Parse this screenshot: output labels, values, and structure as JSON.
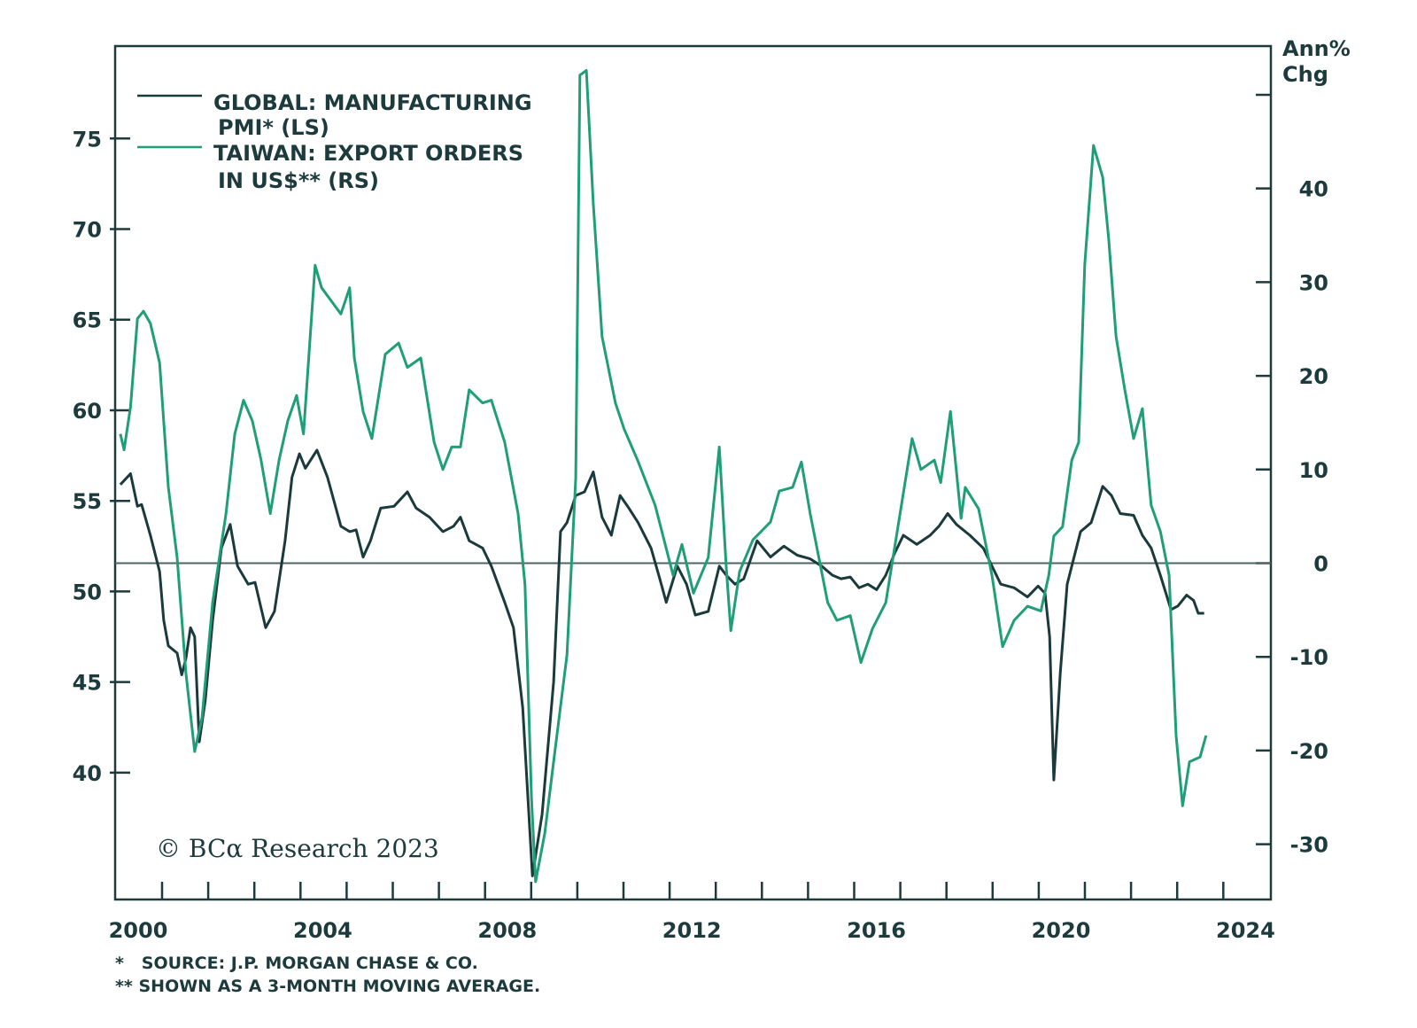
{
  "chart_data": {
    "type": "line",
    "title": "",
    "legend_position": "top-left",
    "grid": false,
    "colors": {
      "pmi": "#1b3a3c",
      "export": "#1f9e78",
      "axis": "#1d3a3c"
    },
    "x_axis": {
      "ticks": [
        2000,
        2004,
        2008,
        2012,
        2016,
        2020,
        2024
      ],
      "range": [
        1999.4,
        2024.5
      ]
    },
    "y_left": {
      "ticks": [
        40,
        45,
        50,
        55,
        60,
        65,
        70,
        75
      ],
      "range": [
        33,
        80.1
      ]
    },
    "y_right": {
      "label_line1": "Ann%",
      "label_line2": "Chg",
      "ticks": [
        -30,
        -20,
        -10,
        0,
        10,
        20,
        30,
        40
      ],
      "range": [
        -35.9,
        55.2
      ],
      "reference_line": 0
    },
    "legend": [
      {
        "line1": "GLOBAL: MANUFACTURING",
        "line2": "PMI* (LS)"
      },
      {
        "line1": "TAIWAN: EXPORT ORDERS",
        "line2": "IN US$** (RS)"
      }
    ],
    "series": [
      {
        "name": "GLOBAL: MANUFACTURING PMI* (LS)",
        "axis": "left",
        "points": [
          [
            1999.48,
            55.9
          ],
          [
            1999.7,
            56.5
          ],
          [
            1999.85,
            54.7
          ],
          [
            1999.94,
            54.8
          ],
          [
            2000.13,
            53.1
          ],
          [
            2000.33,
            51.1
          ],
          [
            2000.42,
            48.4
          ],
          [
            2000.52,
            47.0
          ],
          [
            2000.71,
            46.6
          ],
          [
            2000.81,
            45.4
          ],
          [
            2000.9,
            46.3
          ],
          [
            2001.0,
            48.0
          ],
          [
            2001.09,
            47.5
          ],
          [
            2001.19,
            41.7
          ],
          [
            2001.32,
            44.0
          ],
          [
            2001.48,
            48.4
          ],
          [
            2001.67,
            52.4
          ],
          [
            2001.86,
            53.7
          ],
          [
            2002.02,
            51.4
          ],
          [
            2002.25,
            50.4
          ],
          [
            2002.4,
            50.5
          ],
          [
            2002.63,
            48.0
          ],
          [
            2002.82,
            48.9
          ],
          [
            2003.05,
            52.8
          ],
          [
            2003.2,
            56.3
          ],
          [
            2003.36,
            57.6
          ],
          [
            2003.49,
            56.8
          ],
          [
            2003.74,
            57.8
          ],
          [
            2003.97,
            56.3
          ],
          [
            2004.26,
            53.6
          ],
          [
            2004.45,
            53.3
          ],
          [
            2004.59,
            53.4
          ],
          [
            2004.74,
            51.9
          ],
          [
            2004.9,
            52.8
          ],
          [
            2005.12,
            54.6
          ],
          [
            2005.41,
            54.7
          ],
          [
            2005.7,
            55.5
          ],
          [
            2005.89,
            54.6
          ],
          [
            2006.18,
            54.1
          ],
          [
            2006.47,
            53.3
          ],
          [
            2006.7,
            53.6
          ],
          [
            2006.85,
            54.1
          ],
          [
            2007.04,
            52.8
          ],
          [
            2007.33,
            52.4
          ],
          [
            2007.52,
            51.4
          ],
          [
            2007.81,
            49.4
          ],
          [
            2008.0,
            48.0
          ],
          [
            2008.2,
            43.6
          ],
          [
            2008.41,
            34.3
          ],
          [
            2008.62,
            37.7
          ],
          [
            2008.87,
            45.0
          ],
          [
            2009.02,
            53.3
          ],
          [
            2009.16,
            53.8
          ],
          [
            2009.35,
            55.3
          ],
          [
            2009.54,
            55.5
          ],
          [
            2009.73,
            56.6
          ],
          [
            2009.92,
            54.1
          ],
          [
            2010.12,
            53.1
          ],
          [
            2010.31,
            55.3
          ],
          [
            2010.5,
            54.6
          ],
          [
            2010.7,
            53.8
          ],
          [
            2010.98,
            52.4
          ],
          [
            2011.17,
            50.7
          ],
          [
            2011.31,
            49.4
          ],
          [
            2011.55,
            51.4
          ],
          [
            2011.75,
            50.4
          ],
          [
            2011.94,
            48.7
          ],
          [
            2012.22,
            48.9
          ],
          [
            2012.46,
            51.4
          ],
          [
            2012.61,
            50.9
          ],
          [
            2012.8,
            50.4
          ],
          [
            2012.99,
            50.7
          ],
          [
            2013.28,
            52.8
          ],
          [
            2013.57,
            51.9
          ],
          [
            2013.86,
            52.5
          ],
          [
            2014.15,
            52.0
          ],
          [
            2014.43,
            51.8
          ],
          [
            2014.68,
            51.4
          ],
          [
            2014.91,
            50.9
          ],
          [
            2015.1,
            50.7
          ],
          [
            2015.3,
            50.8
          ],
          [
            2015.49,
            50.2
          ],
          [
            2015.68,
            50.4
          ],
          [
            2015.87,
            50.1
          ],
          [
            2016.07,
            50.9
          ],
          [
            2016.26,
            52.1
          ],
          [
            2016.45,
            53.1
          ],
          [
            2016.74,
            52.6
          ],
          [
            2017.03,
            53.1
          ],
          [
            2017.22,
            53.6
          ],
          [
            2017.41,
            54.3
          ],
          [
            2017.6,
            53.7
          ],
          [
            2017.89,
            53.1
          ],
          [
            2018.18,
            52.4
          ],
          [
            2018.37,
            51.4
          ],
          [
            2018.56,
            50.4
          ],
          [
            2018.85,
            50.2
          ],
          [
            2019.14,
            49.7
          ],
          [
            2019.37,
            50.3
          ],
          [
            2019.52,
            49.9
          ],
          [
            2019.62,
            47.5
          ],
          [
            2019.71,
            39.6
          ],
          [
            2019.85,
            45.5
          ],
          [
            2020.0,
            50.4
          ],
          [
            2020.29,
            53.3
          ],
          [
            2020.52,
            53.8
          ],
          [
            2020.77,
            55.8
          ],
          [
            2020.96,
            55.3
          ],
          [
            2021.15,
            54.3
          ],
          [
            2021.44,
            54.2
          ],
          [
            2021.63,
            53.1
          ],
          [
            2021.82,
            52.4
          ],
          [
            2022.02,
            50.9
          ],
          [
            2022.25,
            49.0
          ],
          [
            2022.4,
            49.2
          ],
          [
            2022.59,
            49.8
          ],
          [
            2022.74,
            49.5
          ],
          [
            2022.84,
            48.8
          ],
          [
            2022.97,
            48.8
          ]
        ]
      },
      {
        "name": "TAIWAN: EXPORT ORDERS IN US$** (RS)",
        "axis": "right",
        "points": [
          [
            1999.48,
            13.8
          ],
          [
            1999.56,
            12.1
          ],
          [
            1999.7,
            16.7
          ],
          [
            1999.85,
            26.1
          ],
          [
            1999.98,
            26.9
          ],
          [
            2000.13,
            25.6
          ],
          [
            2000.33,
            21.4
          ],
          [
            2000.52,
            8.1
          ],
          [
            2000.71,
            0.6
          ],
          [
            2000.9,
            -11.7
          ],
          [
            2001.09,
            -20.1
          ],
          [
            2001.25,
            -16.5
          ],
          [
            2001.48,
            -4.2
          ],
          [
            2001.77,
            5.3
          ],
          [
            2001.96,
            13.8
          ],
          [
            2002.15,
            17.4
          ],
          [
            2002.34,
            15.2
          ],
          [
            2002.53,
            11.0
          ],
          [
            2002.73,
            5.3
          ],
          [
            2002.92,
            11.0
          ],
          [
            2003.11,
            15.2
          ],
          [
            2003.3,
            17.9
          ],
          [
            2003.45,
            13.8
          ],
          [
            2003.7,
            31.8
          ],
          [
            2003.84,
            29.4
          ],
          [
            2004.26,
            26.6
          ],
          [
            2004.45,
            29.4
          ],
          [
            2004.55,
            21.9
          ],
          [
            2004.74,
            16.2
          ],
          [
            2004.93,
            13.3
          ],
          [
            2005.22,
            22.3
          ],
          [
            2005.51,
            23.5
          ],
          [
            2005.7,
            20.9
          ],
          [
            2005.99,
            21.9
          ],
          [
            2006.28,
            12.9
          ],
          [
            2006.47,
            10.0
          ],
          [
            2006.66,
            12.4
          ],
          [
            2006.85,
            12.4
          ],
          [
            2007.04,
            18.5
          ],
          [
            2007.33,
            17.1
          ],
          [
            2007.52,
            17.4
          ],
          [
            2007.81,
            12.9
          ],
          [
            2008.1,
            5.3
          ],
          [
            2008.25,
            -2.3
          ],
          [
            2008.39,
            -25.0
          ],
          [
            2008.48,
            -34.0
          ],
          [
            2008.68,
            -28.8
          ],
          [
            2008.87,
            -21.2
          ],
          [
            2009.16,
            -9.8
          ],
          [
            2009.35,
            9.1
          ],
          [
            2009.44,
            52.1
          ],
          [
            2009.58,
            52.6
          ],
          [
            2009.73,
            38.4
          ],
          [
            2009.92,
            24.2
          ],
          [
            2010.21,
            17.1
          ],
          [
            2010.4,
            14.3
          ],
          [
            2010.69,
            11.0
          ],
          [
            2011.07,
            6.2
          ],
          [
            2011.46,
            -1.3
          ],
          [
            2011.65,
            2.0
          ],
          [
            2011.9,
            -3.2
          ],
          [
            2012.22,
            0.6
          ],
          [
            2012.46,
            12.4
          ],
          [
            2012.61,
            -0.4
          ],
          [
            2012.71,
            -7.2
          ],
          [
            2012.9,
            -0.9
          ],
          [
            2013.19,
            2.5
          ],
          [
            2013.57,
            4.4
          ],
          [
            2013.76,
            7.7
          ],
          [
            2014.05,
            8.1
          ],
          [
            2014.24,
            10.8
          ],
          [
            2014.43,
            5.3
          ],
          [
            2014.81,
            -4.2
          ],
          [
            2015.01,
            -6.1
          ],
          [
            2015.3,
            -5.6
          ],
          [
            2015.53,
            -10.6
          ],
          [
            2015.78,
            -7.0
          ],
          [
            2016.07,
            -4.2
          ],
          [
            2016.35,
            4.4
          ],
          [
            2016.64,
            13.3
          ],
          [
            2016.83,
            10.0
          ],
          [
            2017.12,
            11.0
          ],
          [
            2017.26,
            8.6
          ],
          [
            2017.47,
            16.2
          ],
          [
            2017.7,
            4.8
          ],
          [
            2017.79,
            8.1
          ],
          [
            2018.08,
            5.8
          ],
          [
            2018.37,
            -1.3
          ],
          [
            2018.6,
            -8.9
          ],
          [
            2018.85,
            -6.1
          ],
          [
            2019.14,
            -4.6
          ],
          [
            2019.43,
            -5.1
          ],
          [
            2019.6,
            -1.3
          ],
          [
            2019.71,
            2.9
          ],
          [
            2019.9,
            3.9
          ],
          [
            2020.1,
            11.0
          ],
          [
            2020.25,
            12.9
          ],
          [
            2020.38,
            31.8
          ],
          [
            2020.57,
            44.6
          ],
          [
            2020.77,
            41.2
          ],
          [
            2020.9,
            34.6
          ],
          [
            2021.06,
            24.2
          ],
          [
            2021.25,
            18.5
          ],
          [
            2021.44,
            13.3
          ],
          [
            2021.63,
            16.5
          ],
          [
            2021.82,
            6.2
          ],
          [
            2022.02,
            3.4
          ],
          [
            2022.21,
            -1.3
          ],
          [
            2022.36,
            -18.4
          ],
          [
            2022.5,
            -25.9
          ],
          [
            2022.65,
            -21.2
          ],
          [
            2022.88,
            -20.7
          ],
          [
            2023.01,
            -18.4
          ]
        ]
      }
    ],
    "watermark": "© BCα Research 2023",
    "footnotes": [
      "*   SOURCE: J.P. MORGAN CHASE & CO.",
      "** SHOWN AS A 3-MONTH MOVING AVERAGE."
    ]
  }
}
